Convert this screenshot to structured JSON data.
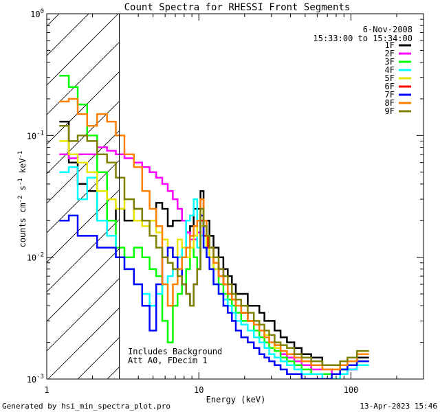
{
  "chart_data": {
    "type": "line",
    "title": "Count Spectra for RHESSI Front Segments",
    "xlabel": "Energy (keV)",
    "ylabel": "counts cm^-2 s^-1 keV^-1",
    "ylabel_parts": {
      "base": "counts cm",
      "e1": "-2",
      "mid": " s",
      "e2": "-1",
      "unit": " keV",
      "e3": "-1"
    },
    "xscale": "log",
    "yscale": "log",
    "xlim": [
      1,
      300
    ],
    "ylim": [
      0.001,
      1
    ],
    "x_ticks": [
      {
        "value": 1,
        "label": "1"
      },
      {
        "value": 10,
        "label": "10"
      },
      {
        "value": 100,
        "label": "100"
      }
    ],
    "y_ticks": [
      {
        "value": 0.001,
        "base": "10",
        "exp": "-3"
      },
      {
        "value": 0.01,
        "base": "10",
        "exp": "-2"
      },
      {
        "value": 0.1,
        "base": "10",
        "exp": "-1"
      },
      {
        "value": 1,
        "base": "10",
        "exp": "0"
      }
    ],
    "hatched_region": {
      "x_from": 1,
      "x_to": 3
    },
    "date_text": "6-Nov-2008",
    "time_text": "15:33:00 to 15:34:00",
    "annotations": [
      "Includes Background",
      "Att A0, FDecim 1"
    ],
    "series": [
      {
        "name": "1F",
        "color": "#000000",
        "x": [
          1.3,
          1.5,
          1.7,
          2.0,
          2.3,
          2.7,
          3.0,
          3.5,
          4.0,
          4.5,
          5.0,
          5.5,
          6.0,
          6.5,
          7.0,
          7.5,
          8.0,
          8.5,
          9.0,
          9.5,
          10.0,
          10.5,
          11.0,
          11.5,
          12,
          13,
          14,
          15,
          16,
          17,
          18,
          20,
          22,
          24,
          26,
          28,
          30,
          33,
          36,
          40,
          45,
          50,
          60,
          70,
          80,
          90,
          100,
          120
        ],
        "values": [
          0.13,
          0.06,
          0.04,
          0.035,
          0.02,
          0.02,
          0.025,
          0.02,
          0.025,
          0.02,
          0.02,
          0.028,
          0.025,
          0.018,
          0.02,
          0.02,
          0.02,
          0.016,
          0.018,
          0.025,
          0.025,
          0.035,
          0.02,
          0.02,
          0.015,
          0.012,
          0.01,
          0.008,
          0.007,
          0.006,
          0.005,
          0.005,
          0.004,
          0.004,
          0.0035,
          0.003,
          0.003,
          0.0025,
          0.0022,
          0.002,
          0.0018,
          0.0016,
          0.0015,
          0.0013,
          0.0013,
          0.0012,
          0.0012,
          0.0015
        ]
      },
      {
        "name": "2F",
        "color": "#ff00ff",
        "x": [
          1.3,
          1.5,
          1.7,
          2.0,
          2.3,
          2.7,
          3.0,
          3.5,
          4.0,
          4.5,
          5.0,
          5.5,
          6.0,
          6.5,
          7.0,
          7.5,
          8.0,
          8.5,
          9.0,
          9.5,
          10.0,
          10.5,
          11.0,
          11.5,
          12,
          13,
          14,
          15,
          16,
          17,
          18,
          20,
          22,
          24,
          26,
          28,
          30,
          33,
          36,
          40,
          45,
          50,
          60,
          70,
          80,
          90,
          100,
          120
        ],
        "values": [
          0.07,
          0.065,
          0.07,
          0.07,
          0.08,
          0.075,
          0.07,
          0.065,
          0.06,
          0.055,
          0.05,
          0.045,
          0.04,
          0.035,
          0.03,
          0.025,
          0.02,
          0.016,
          0.014,
          0.014,
          0.016,
          0.02,
          0.015,
          0.012,
          0.01,
          0.009,
          0.008,
          0.006,
          0.005,
          0.0045,
          0.004,
          0.0035,
          0.003,
          0.0028,
          0.0025,
          0.0022,
          0.002,
          0.0018,
          0.0016,
          0.0015,
          0.0014,
          0.0013,
          0.0012,
          0.0012,
          0.0011,
          0.0011,
          0.0012,
          0.0014
        ]
      },
      {
        "name": "3F",
        "color": "#00ff00",
        "x": [
          1.3,
          1.5,
          1.7,
          2.0,
          2.3,
          2.7,
          3.0,
          3.5,
          4.0,
          4.5,
          5.0,
          5.5,
          6.0,
          6.5,
          7.0,
          7.5,
          8.0,
          8.5,
          9.0,
          9.5,
          10.0,
          10.5,
          11.0,
          11.5,
          12,
          13,
          14,
          15,
          16,
          17,
          18,
          20,
          22,
          24,
          26,
          28,
          30,
          33,
          36,
          40,
          45,
          50,
          60,
          70,
          80,
          90,
          100,
          120
        ],
        "values": [
          0.31,
          0.25,
          0.18,
          0.1,
          0.05,
          0.02,
          0.012,
          0.01,
          0.012,
          0.01,
          0.008,
          0.007,
          0.003,
          0.002,
          0.004,
          0.005,
          0.006,
          0.008,
          0.012,
          0.01,
          0.008,
          0.025,
          0.015,
          0.012,
          0.01,
          0.008,
          0.006,
          0.005,
          0.0045,
          0.004,
          0.0035,
          0.003,
          0.003,
          0.0025,
          0.0022,
          0.002,
          0.0018,
          0.0017,
          0.0015,
          0.0014,
          0.0013,
          0.0012,
          0.0011,
          0.0011,
          0.0011,
          0.0012,
          0.0013,
          0.0014
        ]
      },
      {
        "name": "4F",
        "color": "#00ffff",
        "x": [
          1.3,
          1.5,
          1.7,
          2.0,
          2.3,
          2.7,
          3.0,
          3.5,
          4.0,
          4.5,
          5.0,
          5.5,
          6.0,
          6.5,
          7.0,
          7.5,
          8.0,
          8.5,
          9.0,
          9.5,
          10.0,
          10.5,
          11.0,
          11.5,
          12,
          13,
          14,
          15,
          16,
          17,
          18,
          20,
          22,
          24,
          26,
          28,
          30,
          33,
          36,
          40,
          45,
          50,
          60,
          70,
          80,
          90,
          100,
          120
        ],
        "values": [
          0.05,
          0.055,
          0.03,
          0.045,
          0.02,
          0.015,
          0.01,
          0.008,
          0.006,
          0.005,
          0.004,
          0.005,
          0.006,
          0.007,
          0.008,
          0.01,
          0.012,
          0.02,
          0.022,
          0.03,
          0.012,
          0.015,
          0.012,
          0.01,
          0.008,
          0.006,
          0.005,
          0.0045,
          0.004,
          0.0035,
          0.003,
          0.0028,
          0.0025,
          0.0022,
          0.002,
          0.0018,
          0.0016,
          0.0015,
          0.0014,
          0.0013,
          0.0012,
          0.0011,
          0.0011,
          0.001,
          0.001,
          0.0011,
          0.0012,
          0.0013
        ]
      },
      {
        "name": "5F",
        "color": "#e6e600",
        "x": [
          1.3,
          1.5,
          1.7,
          2.0,
          2.3,
          2.7,
          3.0,
          3.5,
          4.0,
          4.5,
          5.0,
          5.5,
          6.0,
          6.5,
          7.0,
          7.5,
          8.0,
          8.5,
          9.0,
          9.5,
          10.0,
          10.5,
          11.0,
          11.5,
          12,
          13,
          14,
          15,
          16,
          17,
          18,
          20,
          22,
          24,
          26,
          28,
          30,
          33,
          36,
          40,
          45,
          50,
          60,
          70,
          80,
          90,
          100,
          120
        ],
        "values": [
          0.09,
          0.07,
          0.06,
          0.05,
          0.035,
          0.03,
          0.025,
          0.03,
          0.02,
          0.018,
          0.02,
          0.016,
          0.014,
          0.012,
          0.01,
          0.014,
          0.012,
          0.01,
          0.012,
          0.015,
          0.02,
          0.018,
          0.015,
          0.012,
          0.01,
          0.008,
          0.007,
          0.006,
          0.005,
          0.0045,
          0.004,
          0.0035,
          0.003,
          0.0028,
          0.0025,
          0.0023,
          0.002,
          0.0018,
          0.0017,
          0.0016,
          0.0015,
          0.0014,
          0.0013,
          0.0012,
          0.0012,
          0.0013,
          0.0015,
          0.0017
        ]
      },
      {
        "name": "6F",
        "color": "#ff0000",
        "x": [
          10.5,
          11.0,
          12,
          13,
          14,
          15,
          16,
          17,
          18,
          20,
          22,
          24
        ],
        "values": [
          0.02,
          0.015,
          0.012,
          0.009,
          0.007,
          0.006,
          0.005,
          0.0045,
          0.004,
          0.0035,
          0.003,
          0.0028
        ]
      },
      {
        "name": "7F",
        "color": "#0000ff",
        "x": [
          1.3,
          1.5,
          1.7,
          2.0,
          2.3,
          2.7,
          3.0,
          3.5,
          4.0,
          4.5,
          5.0,
          5.5,
          6.0,
          6.5,
          7.0,
          7.5,
          8.0,
          8.5,
          9.0,
          9.5,
          10.0,
          10.5,
          11.0,
          11.5,
          12,
          13,
          14,
          15,
          16,
          17,
          18,
          20,
          22,
          24,
          26,
          28,
          30,
          33,
          36,
          40,
          45,
          50,
          60,
          70,
          80,
          90,
          100,
          120
        ],
        "values": [
          0.02,
          0.022,
          0.015,
          0.015,
          0.012,
          0.012,
          0.01,
          0.008,
          0.006,
          0.004,
          0.0025,
          0.006,
          0.01,
          0.012,
          0.01,
          0.008,
          0.006,
          0.005,
          0.004,
          0.006,
          0.008,
          0.022,
          0.012,
          0.01,
          0.008,
          0.006,
          0.005,
          0.004,
          0.0035,
          0.003,
          0.0025,
          0.0022,
          0.002,
          0.0018,
          0.0016,
          0.0015,
          0.0014,
          0.0013,
          0.0012,
          0.0011,
          0.0011,
          0.001,
          0.001,
          0.001,
          0.0011,
          0.0012,
          0.0013,
          0.0014
        ]
      },
      {
        "name": "8F",
        "color": "#ff8000",
        "x": [
          1.3,
          1.5,
          1.7,
          2.0,
          2.3,
          2.7,
          3.0,
          3.5,
          4.0,
          4.5,
          5.0,
          5.5,
          6.0,
          6.5,
          7.0,
          7.5,
          8.0,
          8.5,
          9.0,
          9.5,
          10.0,
          10.5,
          11.0,
          11.5,
          12,
          13,
          14,
          15,
          16,
          17,
          18,
          20,
          22,
          24,
          26,
          28,
          30,
          33,
          36,
          40,
          45,
          50,
          60,
          70,
          80,
          90,
          100,
          120
        ],
        "values": [
          0.19,
          0.2,
          0.15,
          0.12,
          0.15,
          0.13,
          0.1,
          0.07,
          0.055,
          0.035,
          0.025,
          0.018,
          0.006,
          0.004,
          0.006,
          0.008,
          0.01,
          0.012,
          0.015,
          0.018,
          0.02,
          0.03,
          0.02,
          0.015,
          0.012,
          0.009,
          0.007,
          0.006,
          0.005,
          0.0045,
          0.004,
          0.0035,
          0.003,
          0.0028,
          0.0025,
          0.0022,
          0.002,
          0.0019,
          0.0017,
          0.0016,
          0.0015,
          0.0014,
          0.0013,
          0.0012,
          0.0012,
          0.0013,
          0.0014,
          0.0016
        ]
      },
      {
        "name": "9F",
        "color": "#808000",
        "x": [
          1.3,
          1.5,
          1.7,
          2.0,
          2.3,
          2.7,
          3.0,
          3.5,
          4.0,
          4.5,
          5.0,
          5.5,
          6.0,
          6.5,
          7.0,
          7.5,
          8.0,
          8.5,
          9.0,
          9.5,
          10.0,
          10.5,
          11.0,
          11.5,
          12,
          13,
          14,
          15,
          16,
          17,
          18,
          20,
          22,
          24,
          26,
          28,
          30,
          33,
          36,
          40,
          45,
          50,
          60,
          70,
          80,
          90,
          100,
          120
        ],
        "values": [
          0.12,
          0.09,
          0.1,
          0.09,
          0.07,
          0.06,
          0.045,
          0.03,
          0.025,
          0.02,
          0.015,
          0.012,
          0.01,
          0.009,
          0.008,
          0.007,
          0.006,
          0.005,
          0.004,
          0.006,
          0.008,
          0.025,
          0.018,
          0.015,
          0.012,
          0.01,
          0.008,
          0.007,
          0.006,
          0.005,
          0.0045,
          0.004,
          0.0035,
          0.003,
          0.0028,
          0.0025,
          0.0023,
          0.002,
          0.0019,
          0.0018,
          0.0016,
          0.0015,
          0.0014,
          0.0013,
          0.0013,
          0.0014,
          0.0015,
          0.0017
        ]
      }
    ]
  },
  "footer": {
    "generated_by": "Generated by hsi_min_spectra_plot.pro",
    "timestamp": "13-Apr-2023 15:46"
  }
}
